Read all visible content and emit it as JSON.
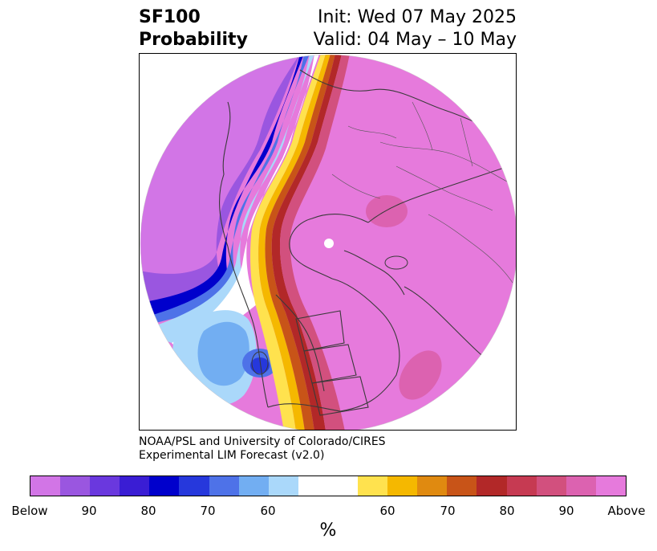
{
  "title": {
    "left_line1": "SF100",
    "left_line2": "Probability",
    "right_line1": "Init: Wed 07 May 2025",
    "right_line2": "Valid: 04 May – 10 May"
  },
  "credit": {
    "line1": "NOAA/PSL and University of Colorado/CIRES",
    "line2": "Experimental LIM Forecast (v2.0)"
  },
  "colorbar": {
    "label": "%",
    "tick_labels": [
      "Below",
      "90",
      "80",
      "70",
      "60",
      "60",
      "70",
      "80",
      "90",
      "Above"
    ],
    "colors": [
      "#d275e6",
      "#9a56e0",
      "#6a38de",
      "#3a1dd4",
      "#0000cc",
      "#2638dc",
      "#4e72e8",
      "#72aef2",
      "#aad8fa",
      "#ffffff",
      "#ffe24e",
      "#f5b800",
      "#e08a10",
      "#c85418",
      "#b22828",
      "#c63a52",
      "#d2507e",
      "#dc62b0",
      "#e67adc"
    ]
  },
  "map": {
    "projection": "north-polar-stereographic",
    "field": "SF100 probability",
    "colors": {
      "above_dominant": "#e67adc",
      "below_dominant": "#d275e6"
    }
  }
}
